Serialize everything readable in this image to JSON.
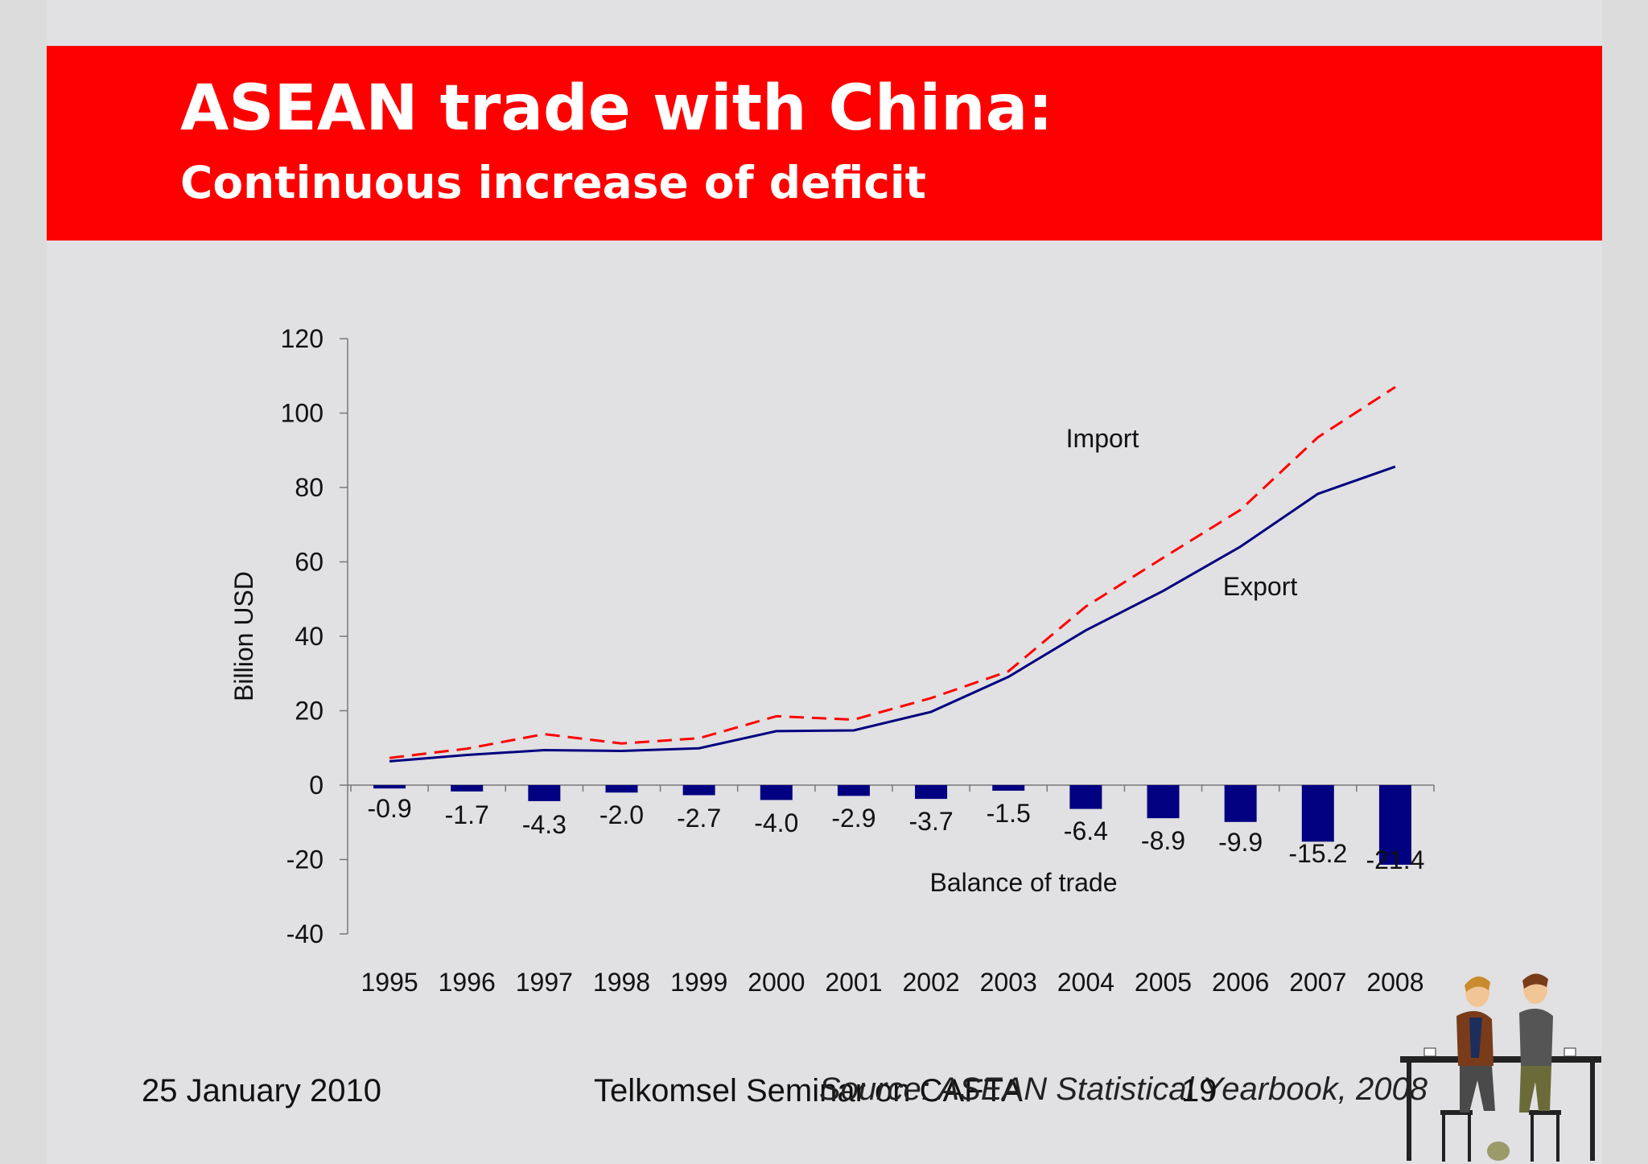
{
  "header": {
    "title": "ASEAN trade with China:",
    "subtitle": "Continuous increase of deficit"
  },
  "footer": {
    "date": "25 January 2010",
    "seminar": "Telkomsel Seminar on CAFTA",
    "source": "Source: ASEAN Statistical Yearbook, 2008",
    "page_number": "19"
  },
  "colors": {
    "banner": "#ff0000",
    "import_line": "#ff0000",
    "export_line": "#000080",
    "balance_bars": "#000080"
  },
  "chart_data": {
    "type": "bar",
    "title": "",
    "xlabel": "",
    "ylabel": "Billion USD",
    "ylim": [
      -40,
      120
    ],
    "yticks": [
      120,
      100,
      80,
      60,
      40,
      20,
      0,
      -20,
      -40
    ],
    "categories": [
      "1995",
      "1996",
      "1997",
      "1998",
      "1999",
      "2000",
      "2001",
      "2002",
      "2003",
      "2004",
      "2005",
      "2006",
      "2007",
      "2008"
    ],
    "grid": false,
    "legend": "none",
    "series": [
      {
        "name": "Import",
        "type": "line",
        "style": "dashed",
        "values": [
          7.3,
          9.8,
          13.7,
          11.2,
          12.6,
          18.5,
          17.6,
          23.4,
          30.6,
          48.0,
          61.1,
          74.0,
          93.5,
          107.0
        ]
      },
      {
        "name": "Export",
        "type": "line",
        "style": "solid",
        "values": [
          6.4,
          8.1,
          9.4,
          9.2,
          9.9,
          14.5,
          14.7,
          19.7,
          29.1,
          41.6,
          52.2,
          64.1,
          78.3,
          85.6
        ]
      },
      {
        "name": "Balance of trade",
        "type": "bar",
        "values": [
          -0.9,
          -1.7,
          -4.3,
          -2.0,
          -2.7,
          -4.0,
          -2.9,
          -3.7,
          -1.5,
          -6.4,
          -8.9,
          -9.9,
          -15.2,
          -21.4
        ]
      }
    ],
    "data_labels": [
      "-0.9",
      "-1.7",
      "-4.3",
      "-2.0",
      "-2.7",
      "-4.0",
      "-2.9",
      "-3.7",
      "-1.5",
      "-6.4",
      "-8.9",
      "-9.9",
      "-15.2",
      "-21.4"
    ]
  },
  "clipart": {
    "icon": "two-people-at-cafe-table-clipart"
  }
}
